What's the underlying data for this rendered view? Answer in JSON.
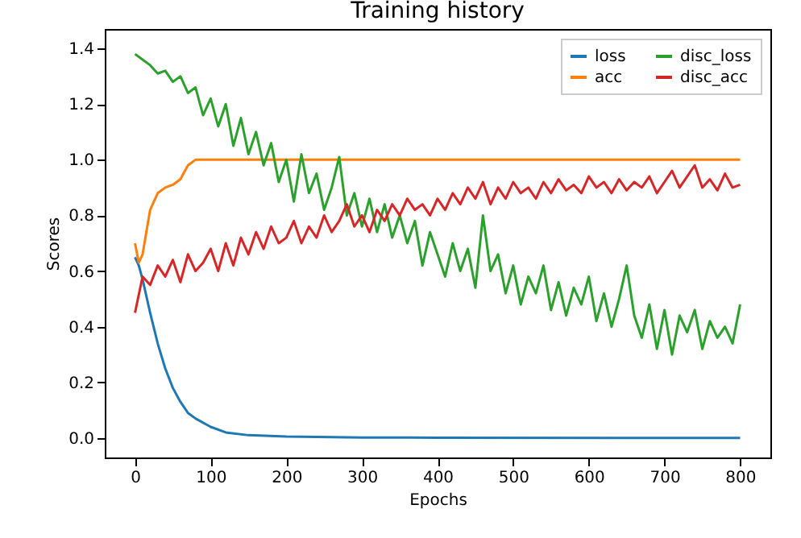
{
  "chart_data": {
    "type": "line",
    "title": "Training history",
    "xlabel": "Epochs",
    "ylabel": "Scores",
    "xlim": [
      -40,
      840
    ],
    "ylim": [
      -0.07,
      1.47
    ],
    "xticks": [
      0,
      100,
      200,
      300,
      400,
      500,
      600,
      700,
      800
    ],
    "yticks": [
      {
        "value": 0,
        "label": "0.0"
      },
      {
        "value": 0.2,
        "label": "0.2"
      },
      {
        "value": 0.4,
        "label": "0.4"
      },
      {
        "value": 0.6,
        "label": "0.6"
      },
      {
        "value": 0.8,
        "label": "0.8"
      },
      {
        "value": 1,
        "label": "1.0"
      },
      {
        "value": 1.2,
        "label": "1.2"
      },
      {
        "value": 1.4,
        "label": "1.4"
      }
    ],
    "legend": "top right",
    "x": [
      0,
      10,
      20,
      30,
      40,
      50,
      60,
      70,
      80,
      90,
      100,
      110,
      120,
      130,
      140,
      150,
      160,
      170,
      180,
      190,
      200,
      210,
      220,
      230,
      240,
      250,
      260,
      270,
      280,
      290,
      300,
      310,
      320,
      330,
      340,
      350,
      360,
      370,
      380,
      390,
      400,
      410,
      420,
      430,
      440,
      450,
      460,
      470,
      480,
      490,
      500,
      510,
      520,
      530,
      540,
      550,
      560,
      570,
      580,
      590,
      600,
      610,
      620,
      630,
      640,
      650,
      660,
      670,
      680,
      690,
      700,
      710,
      720,
      730,
      740,
      750,
      760,
      770,
      780,
      790,
      800
    ],
    "series": [
      {
        "name": "loss",
        "color": "#1f77b4",
        "x": [
          0,
          5,
          10,
          20,
          30,
          40,
          50,
          60,
          70,
          80,
          100,
          120,
          150,
          200,
          300,
          400,
          800
        ],
        "values": [
          0.65,
          0.62,
          0.57,
          0.45,
          0.34,
          0.25,
          0.18,
          0.13,
          0.09,
          0.07,
          0.04,
          0.02,
          0.01,
          0.005,
          0.002,
          0.001,
          0
        ]
      },
      {
        "name": "acc",
        "color": "#ff7f0e",
        "x": [
          0,
          5,
          10,
          20,
          30,
          40,
          50,
          60,
          70,
          80,
          800
        ],
        "values": [
          0.7,
          0.63,
          0.66,
          0.82,
          0.88,
          0.9,
          0.91,
          0.93,
          0.98,
          1,
          1
        ]
      },
      {
        "name": "disc_loss",
        "color": "#2ca02c",
        "values": [
          1.38,
          1.36,
          1.34,
          1.31,
          1.32,
          1.28,
          1.3,
          1.24,
          1.26,
          1.16,
          1.22,
          1.12,
          1.2,
          1.05,
          1.15,
          1.02,
          1.1,
          0.98,
          1.06,
          0.92,
          1,
          0.85,
          1.02,
          0.88,
          0.95,
          0.82,
          0.9,
          1.01,
          0.8,
          0.88,
          0.76,
          0.86,
          0.74,
          0.84,
          0.72,
          0.8,
          0.7,
          0.78,
          0.62,
          0.74,
          0.66,
          0.58,
          0.7,
          0.6,
          0.68,
          0.54,
          0.8,
          0.6,
          0.66,
          0.52,
          0.62,
          0.48,
          0.58,
          0.52,
          0.62,
          0.46,
          0.56,
          0.44,
          0.54,
          0.48,
          0.58,
          0.42,
          0.52,
          0.4,
          0.5,
          0.62,
          0.44,
          0.36,
          0.48,
          0.32,
          0.46,
          0.3,
          0.44,
          0.38,
          0.46,
          0.32,
          0.42,
          0.36,
          0.4,
          0.34,
          0.48
        ]
      },
      {
        "name": "disc_acc",
        "color": "#d62728",
        "values": [
          0.45,
          0.58,
          0.55,
          0.62,
          0.58,
          0.64,
          0.56,
          0.66,
          0.6,
          0.63,
          0.68,
          0.6,
          0.7,
          0.62,
          0.72,
          0.66,
          0.74,
          0.68,
          0.76,
          0.7,
          0.72,
          0.78,
          0.7,
          0.76,
          0.72,
          0.8,
          0.74,
          0.78,
          0.84,
          0.76,
          0.8,
          0.74,
          0.82,
          0.78,
          0.84,
          0.8,
          0.86,
          0.82,
          0.84,
          0.8,
          0.86,
          0.82,
          0.88,
          0.84,
          0.9,
          0.86,
          0.92,
          0.84,
          0.9,
          0.86,
          0.92,
          0.88,
          0.9,
          0.86,
          0.92,
          0.88,
          0.93,
          0.89,
          0.91,
          0.88,
          0.94,
          0.9,
          0.92,
          0.88,
          0.93,
          0.89,
          0.92,
          0.9,
          0.94,
          0.88,
          0.92,
          0.96,
          0.9,
          0.94,
          0.98,
          0.9,
          0.93,
          0.89,
          0.95,
          0.9,
          0.91
        ]
      }
    ]
  }
}
